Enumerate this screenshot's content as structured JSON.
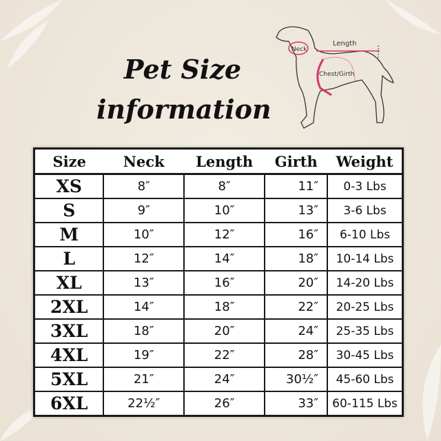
{
  "title": {
    "line1": "Pet Size",
    "line2": "information"
  },
  "diagram": {
    "neck_label": "Neck",
    "length_label": "Length",
    "girth_label": "Chest/Girth",
    "accent_color": "#d6336c"
  },
  "table": {
    "headers": [
      "Size",
      "Neck",
      "Length",
      "Girth",
      "Weight"
    ],
    "rows": [
      [
        "XS",
        "8″",
        "8″",
        "11″",
        "0-3 Lbs"
      ],
      [
        "S",
        "9″",
        "10″",
        "13″",
        "3-6 Lbs"
      ],
      [
        "M",
        "10″",
        "12″",
        "16″",
        "6-10 Lbs"
      ],
      [
        "L",
        "12″",
        "14″",
        "18″",
        "10-14 Lbs"
      ],
      [
        "XL",
        "13″",
        "16″",
        "20″",
        "14-20 Lbs"
      ],
      [
        "2XL",
        "14″",
        "18″",
        "22″",
        "20-25 Lbs"
      ],
      [
        "3XL",
        "18″",
        "20″",
        "24″",
        "25-35 Lbs"
      ],
      [
        "4XL",
        "19″",
        "22″",
        "28″",
        "30-45 Lbs"
      ],
      [
        "5XL",
        "21″",
        "24″",
        "30½″",
        "45-60 Lbs"
      ],
      [
        "6XL",
        "22½″",
        "26″",
        "33″",
        "60-115 Lbs"
      ]
    ]
  }
}
